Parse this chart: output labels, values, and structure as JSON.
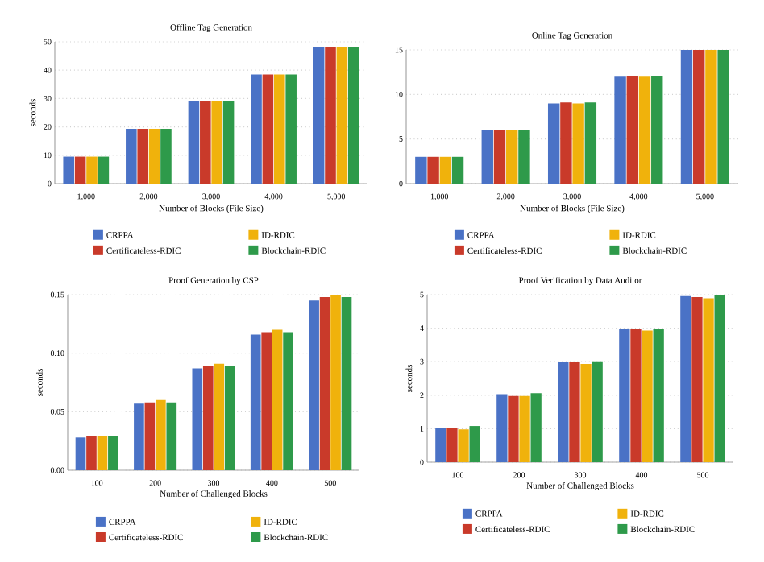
{
  "chart_data": [
    {
      "type": "bar",
      "title": "Offline Tag Generation",
      "xlabel": "Number of Blocks (File Size)",
      "ylabel": "seconds",
      "categories": [
        "1,000",
        "2,000",
        "3,000",
        "4,000",
        "5,000"
      ],
      "ylim": [
        0,
        50
      ],
      "yticks": [
        0,
        10,
        20,
        30,
        40,
        50
      ],
      "grid": "y",
      "legend": "bottom",
      "series": [
        {
          "name": "CRPPA",
          "color": "#4a72c6",
          "values": [
            9.5,
            19.3,
            29,
            38.5,
            48.3
          ]
        },
        {
          "name": "Certificateless-RDIC",
          "color": "#c93a2a",
          "values": [
            9.5,
            19.3,
            29,
            38.5,
            48.3
          ]
        },
        {
          "name": "ID-RDIC",
          "color": "#f0b20c",
          "values": [
            9.5,
            19.3,
            29,
            38.5,
            48.3
          ]
        },
        {
          "name": "Blockchain-RDIC",
          "color": "#2e9a4a",
          "values": [
            9.5,
            19.3,
            29,
            38.5,
            48.3
          ]
        }
      ]
    },
    {
      "type": "bar",
      "title": "Online Tag Generation",
      "xlabel": "Number of Blocks (File Size)",
      "categories": [
        "1,000",
        "2,000",
        "3,000",
        "4,000",
        "5,000"
      ],
      "ylim": [
        0,
        15
      ],
      "yticks": [
        0,
        5,
        10,
        15
      ],
      "grid": "y",
      "legend": "bottom",
      "series": [
        {
          "name": "CRPPA",
          "color": "#4a72c6",
          "values": [
            3,
            6,
            9,
            12,
            15
          ]
        },
        {
          "name": "Certificateless-RDIC",
          "color": "#c93a2a",
          "values": [
            3,
            6,
            9.1,
            12.1,
            15
          ]
        },
        {
          "name": "ID-RDIC",
          "color": "#f0b20c",
          "values": [
            3,
            6,
            9,
            12,
            15
          ]
        },
        {
          "name": "Blockchain-RDIC",
          "color": "#2e9a4a",
          "values": [
            3,
            6,
            9.1,
            12.1,
            15
          ]
        }
      ]
    },
    {
      "type": "bar",
      "title": "Proof Generation by CSP",
      "xlabel": "Number of Challenged Blocks",
      "ylabel": "seconds",
      "categories": [
        "100",
        "200",
        "300",
        "400",
        "500"
      ],
      "ylim": [
        0,
        0.15
      ],
      "yticks": [
        {
          "value": 0,
          "label": "0.00"
        },
        {
          "value": 0.05,
          "label": "0.05"
        },
        {
          "value": 0.1,
          "label": "0.10"
        },
        {
          "value": 0.15,
          "label": "0.15"
        }
      ],
      "grid": "y",
      "legend": "bottom",
      "series": [
        {
          "name": "CRPPA",
          "color": "#4a72c6",
          "values": [
            0.028,
            0.057,
            0.087,
            0.116,
            0.145
          ]
        },
        {
          "name": "Certificateless-RDIC",
          "color": "#c93a2a",
          "values": [
            0.029,
            0.058,
            0.089,
            0.118,
            0.148
          ]
        },
        {
          "name": "ID-RDIC",
          "color": "#f0b20c",
          "values": [
            0.029,
            0.06,
            0.091,
            0.12,
            0.15
          ]
        },
        {
          "name": "Blockchain-RDIC",
          "color": "#2e9a4a",
          "values": [
            0.029,
            0.058,
            0.089,
            0.118,
            0.148
          ]
        }
      ]
    },
    {
      "type": "bar",
      "title": "Proof Verification by Data Auditor",
      "xlabel": "Number of Challenged Blocks",
      "ylabel": "seconds",
      "categories": [
        "100",
        "200",
        "300",
        "400",
        "500"
      ],
      "ylim": [
        0,
        5
      ],
      "yticks": [
        0,
        1,
        2,
        3,
        4,
        5
      ],
      "grid": "y",
      "legend": "bottom",
      "series": [
        {
          "name": "CRPPA",
          "color": "#4a72c6",
          "values": [
            1.02,
            2.03,
            2.98,
            3.98,
            4.96
          ]
        },
        {
          "name": "Certificateless-RDIC",
          "color": "#c93a2a",
          "values": [
            1.02,
            1.98,
            2.98,
            3.97,
            4.93
          ]
        },
        {
          "name": "ID-RDIC",
          "color": "#f0b20c",
          "values": [
            0.98,
            1.98,
            2.93,
            3.93,
            4.89
          ]
        },
        {
          "name": "Blockchain-RDIC",
          "color": "#2e9a4a",
          "values": [
            1.08,
            2.06,
            3.01,
            3.99,
            4.98
          ]
        }
      ]
    }
  ]
}
